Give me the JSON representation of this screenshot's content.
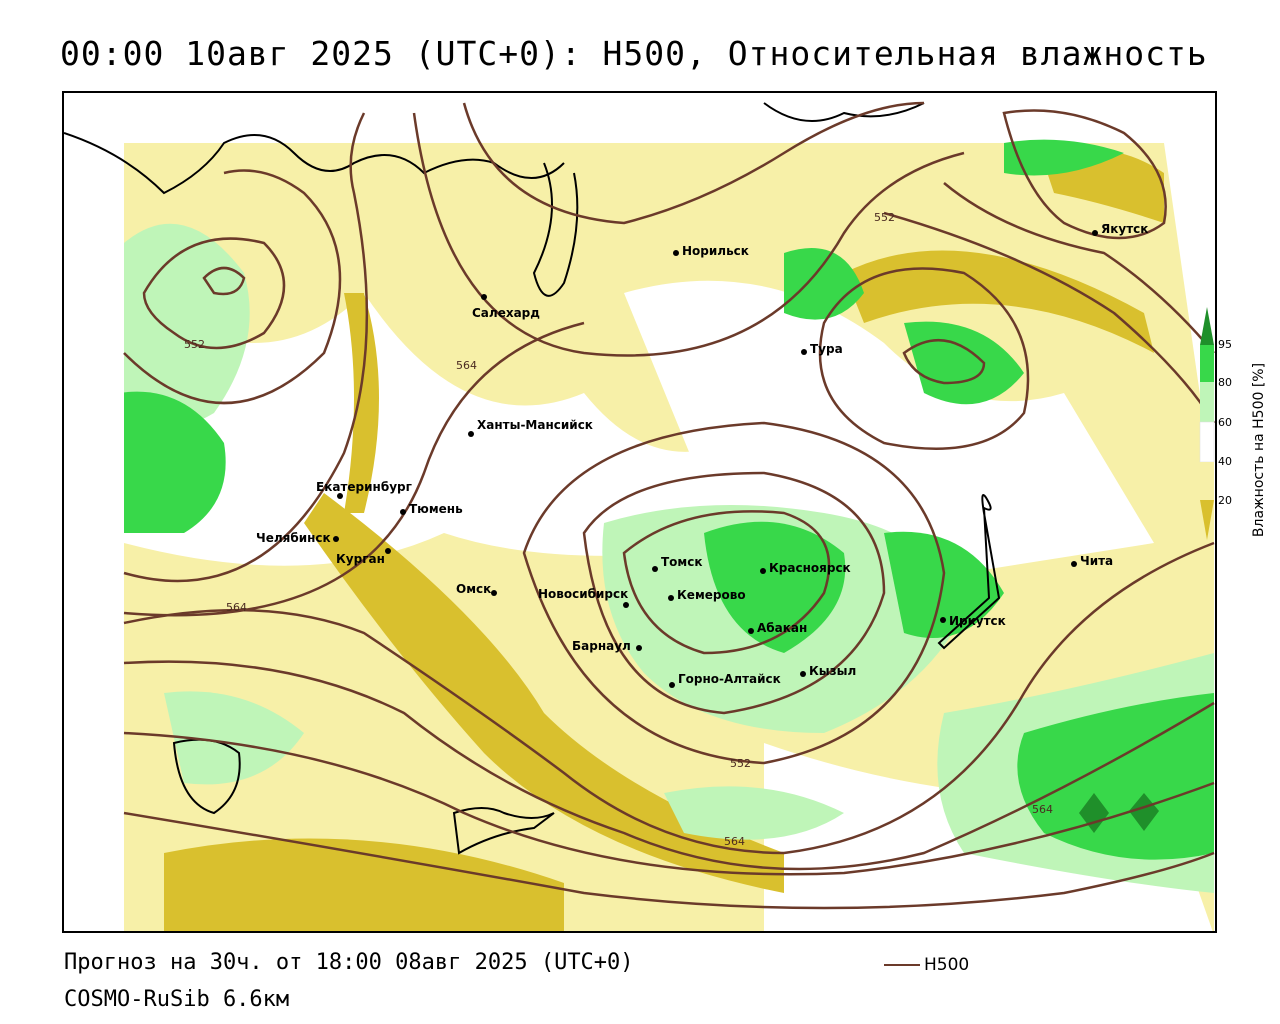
{
  "title": "00:00 10авг 2025 (UTC+0): H500, Относительная влажность",
  "footer": {
    "forecast": "Прогноз на 30ч. от 18:00 08авг 2025 (UTC+0)",
    "model": "COSMO-RuSib 6.6км"
  },
  "legend": {
    "h500_label": "H500"
  },
  "colorbar": {
    "title": "Влажность на H500 [%]",
    "ticks": [
      "20",
      "40",
      "60",
      "80",
      "95"
    ],
    "colors": {
      "lt20": "#d9c02e",
      "20_40": "#f7f0a8",
      "40_60": "#ffffff",
      "60_80": "#bff5b8",
      "80_95": "#38d84a",
      "gt95": "#1f8f2a"
    }
  },
  "contour_color": "#6b3a2a",
  "cities": [
    {
      "id": "yakutsk",
      "name": "Якутск"
    },
    {
      "id": "norilsk",
      "name": "Норильск"
    },
    {
      "id": "salekhard",
      "name": "Салехард"
    },
    {
      "id": "tura",
      "name": "Тура"
    },
    {
      "id": "khanty",
      "name": "Ханты-Мансийск"
    },
    {
      "id": "ekaterinburg",
      "name": "Екатеринбург"
    },
    {
      "id": "tyumen",
      "name": "Тюмень"
    },
    {
      "id": "chelyabinsk",
      "name": "Челябинск"
    },
    {
      "id": "kurgan",
      "name": "Курган"
    },
    {
      "id": "omsk",
      "name": "Омск"
    },
    {
      "id": "novosibirsk",
      "name": "Новосибирск"
    },
    {
      "id": "tomsk",
      "name": "Томск"
    },
    {
      "id": "kemerovo",
      "name": "Кемерово"
    },
    {
      "id": "krasnoyarsk",
      "name": "Красноярск"
    },
    {
      "id": "abakan",
      "name": "Абакан"
    },
    {
      "id": "barnaul",
      "name": "Барнаул"
    },
    {
      "id": "gorno",
      "name": "Горно-Алтайск"
    },
    {
      "id": "kyzyl",
      "name": "Кызыл"
    },
    {
      "id": "irkutsk",
      "name": "Иркутск"
    },
    {
      "id": "chita",
      "name": "Чита"
    }
  ],
  "contour_labels": [
    {
      "id": "c552a",
      "text": "552"
    },
    {
      "id": "c552b",
      "text": "552"
    },
    {
      "id": "c564a",
      "text": "564"
    },
    {
      "id": "c564b",
      "text": "564"
    },
    {
      "id": "c552c",
      "text": "552"
    },
    {
      "id": "c564c",
      "text": "564"
    },
    {
      "id": "c564d",
      "text": "564"
    }
  ]
}
